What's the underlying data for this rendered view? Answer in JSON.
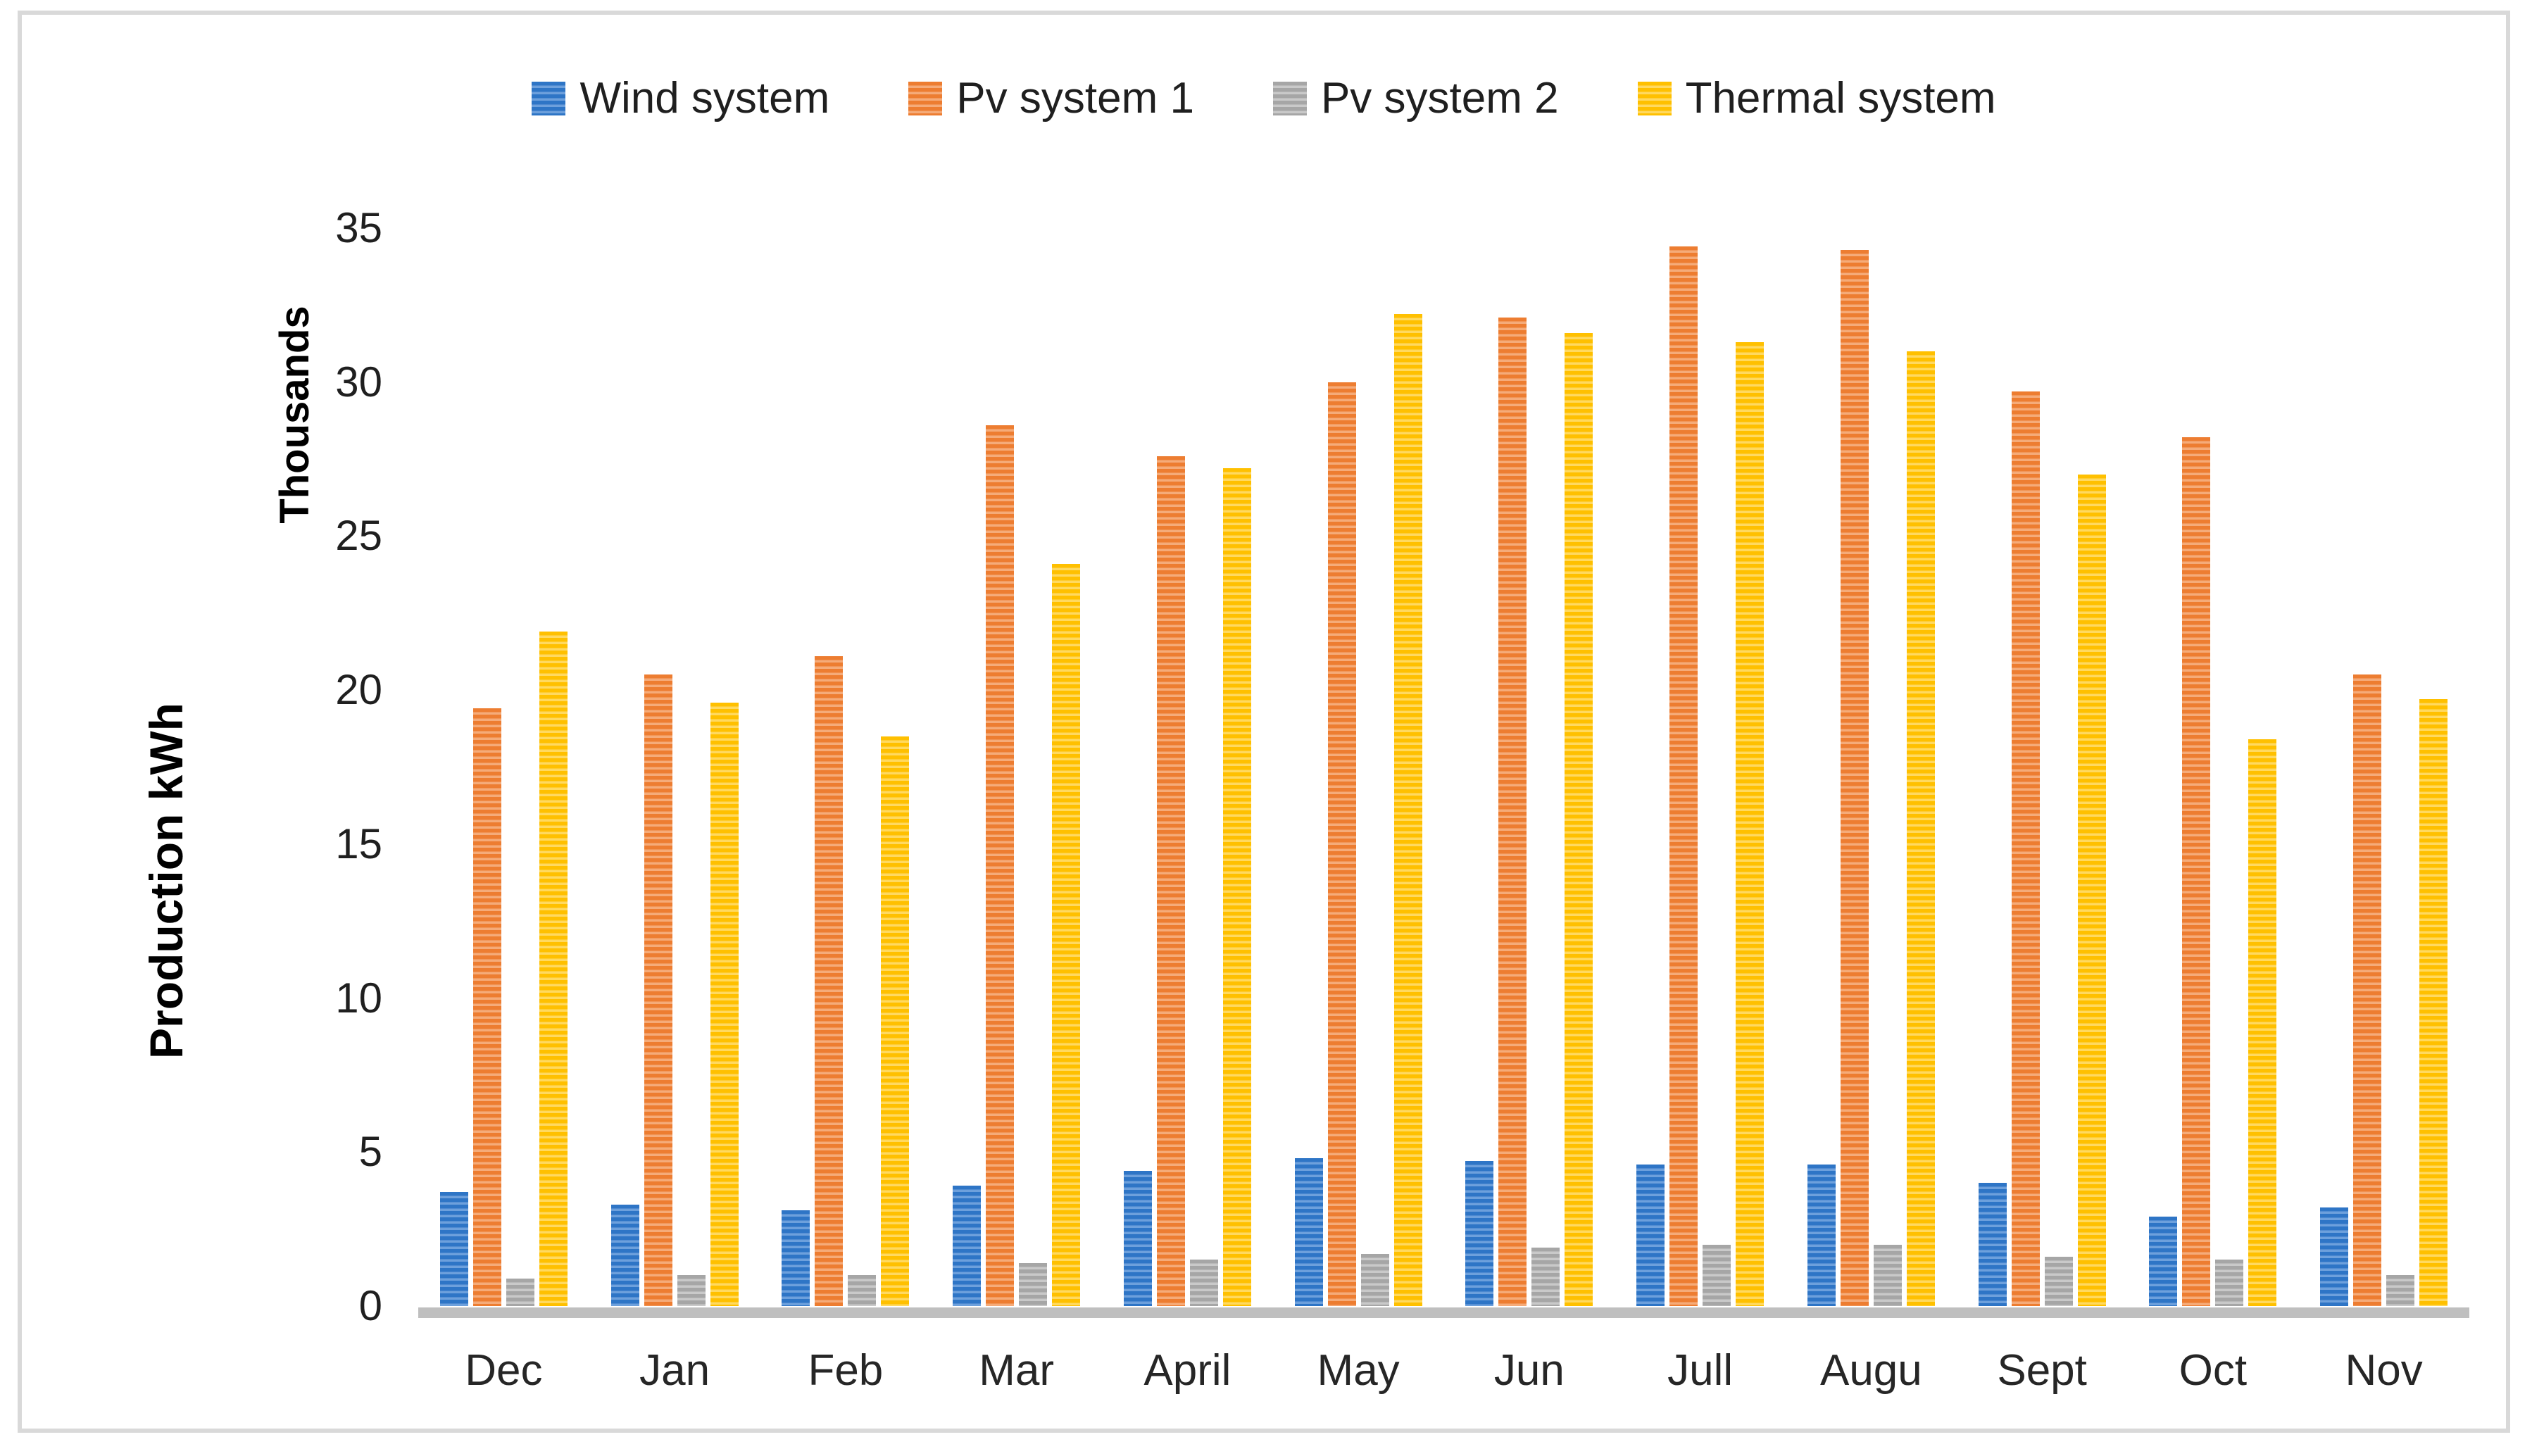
{
  "figure": {
    "background": "#ffffff",
    "border_color": "#d9d9d9",
    "text_color": "#1f1f1f",
    "axis_line_color": "#bfbfbf"
  },
  "chart_data": {
    "type": "bar",
    "title": "",
    "xlabel": "",
    "ylabel": "Production kWh",
    "y_secondary_label": "Thousands",
    "ylim": [
      0,
      35
    ],
    "yticks": [
      0,
      5,
      10,
      15,
      20,
      25,
      30,
      35
    ],
    "grid": false,
    "legend_position": "top-center",
    "bar_fill_pattern": "horizontal-stripes",
    "categories": [
      "Dec",
      "Jan",
      "Feb",
      "Mar",
      "April",
      "May",
      "Jun",
      "Jull",
      "Augu",
      "Sept",
      "Oct",
      "Nov"
    ],
    "series": [
      {
        "name": "Wind system",
        "color": "#2E75C6",
        "stripe": "#6DA0DC",
        "values": [
          3.7,
          3.3,
          3.1,
          3.9,
          4.4,
          4.8,
          4.7,
          4.6,
          4.6,
          4.0,
          2.9,
          3.2
        ]
      },
      {
        "name": "Pv system 1",
        "color": "#ED7D31",
        "stripe": "#F5AB79",
        "values": [
          19.4,
          20.5,
          21.1,
          28.6,
          27.6,
          30.0,
          32.1,
          34.4,
          34.3,
          29.7,
          28.2,
          20.5
        ]
      },
      {
        "name": "Pv system 2",
        "color": "#A6A6A6",
        "stripe": "#C9C9C9",
        "values": [
          0.9,
          1.0,
          1.0,
          1.4,
          1.5,
          1.7,
          1.9,
          2.0,
          2.0,
          1.6,
          1.5,
          1.0
        ]
      },
      {
        "name": "Thermal system",
        "color": "#FFC000",
        "stripe": "#FFD960",
        "values": [
          21.9,
          19.6,
          18.5,
          24.1,
          27.2,
          32.2,
          31.6,
          31.3,
          31.0,
          27.0,
          18.4,
          19.7
        ]
      }
    ]
  }
}
